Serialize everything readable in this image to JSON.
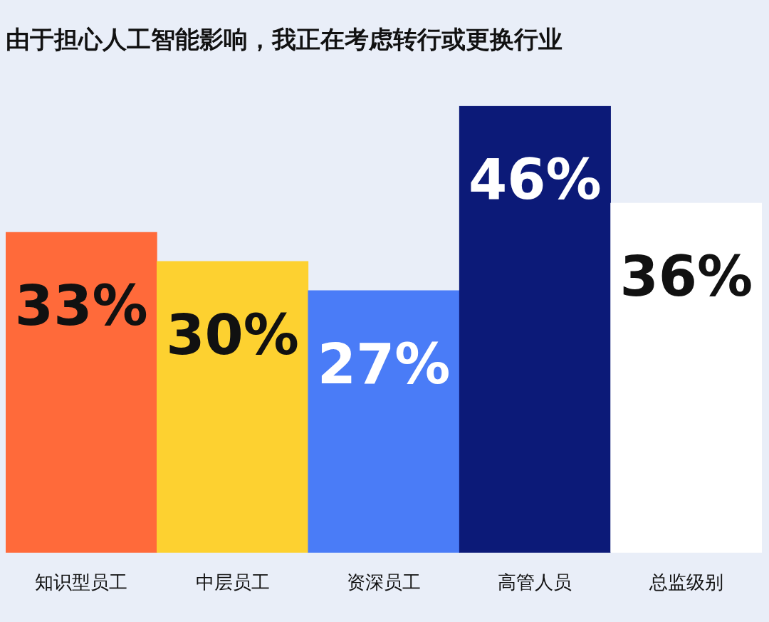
{
  "chart_data": {
    "type": "bar",
    "title": "由于担心人工智能影响，我正在考虑转行或更换行业",
    "categories": [
      "知识型员工",
      "中层员工",
      "资深员工",
      "高管人员",
      "总监级别"
    ],
    "values": [
      33,
      30,
      27,
      46,
      36
    ],
    "colors": [
      "#ff6a3a",
      "#fdd130",
      "#4a7cf7",
      "#0c1a78",
      "#ffffff"
    ],
    "value_labels": [
      "33%",
      "30%",
      "27%",
      "46%",
      "36%"
    ],
    "grid": false,
    "legend": false
  }
}
